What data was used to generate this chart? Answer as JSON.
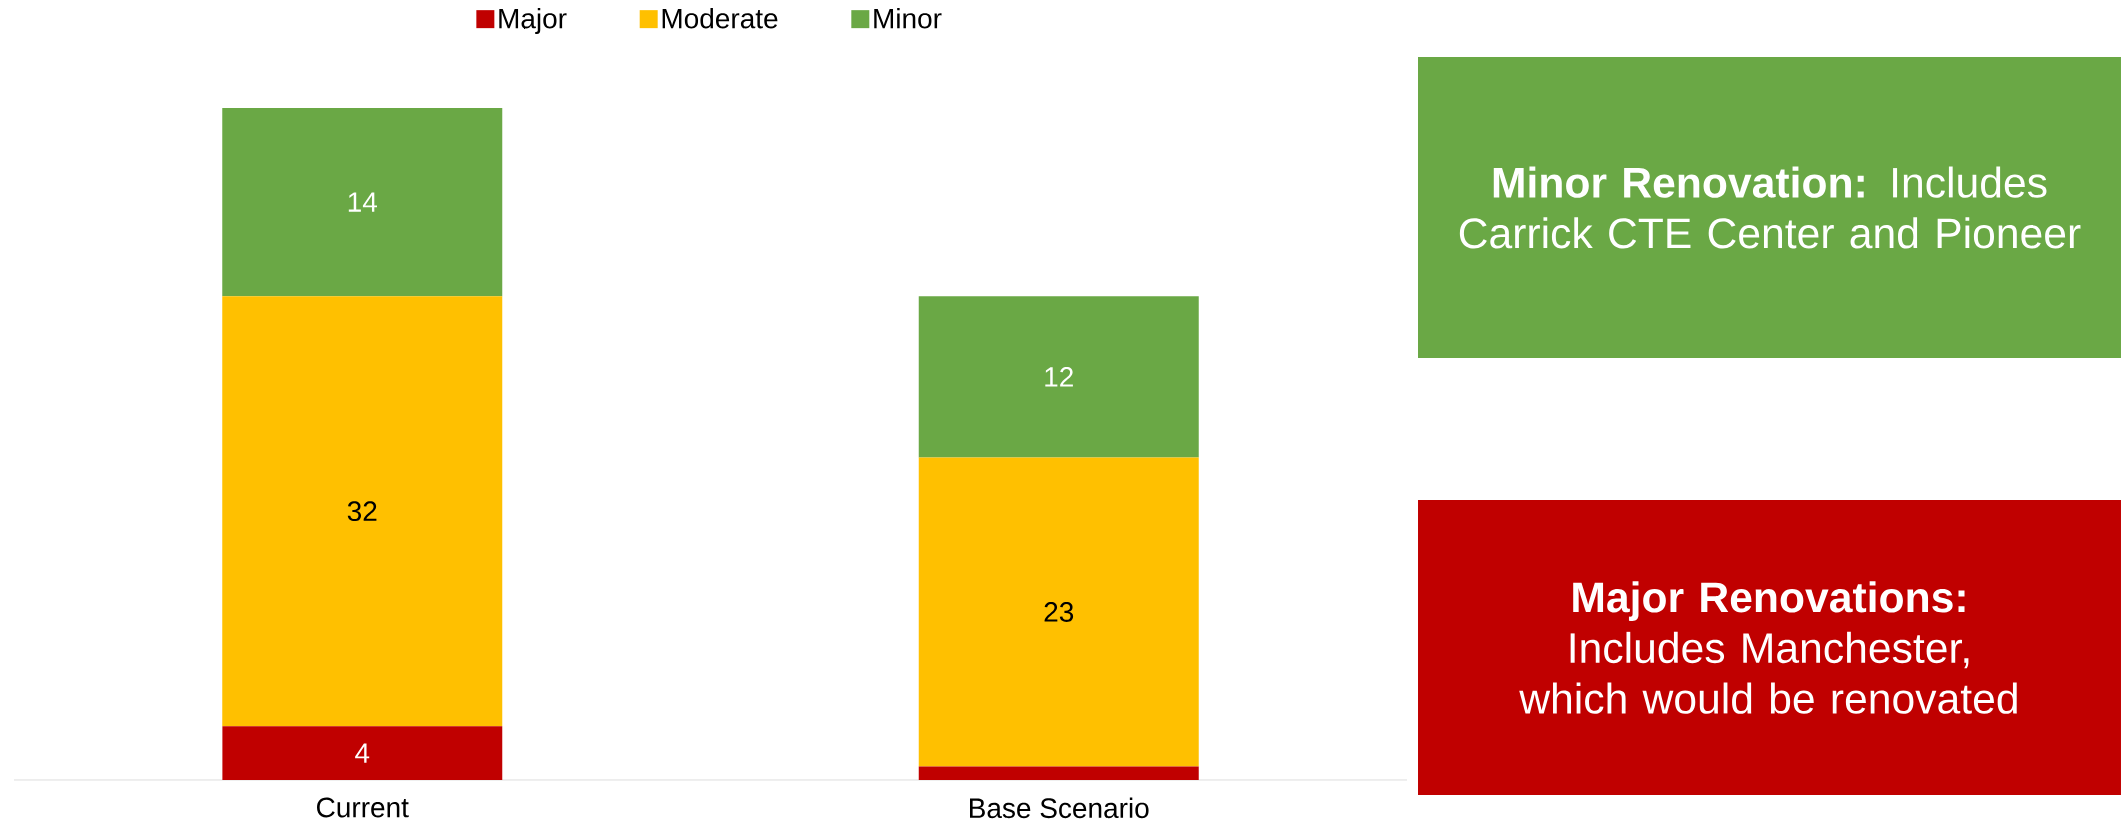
{
  "chart_data": {
    "type": "bar",
    "stacked": true,
    "categories": [
      "Current",
      "Base Scenario"
    ],
    "series": [
      {
        "name": "Major",
        "color": "#c00000",
        "values": [
          4,
          1
        ],
        "value_labels": [
          "4",
          null
        ]
      },
      {
        "name": "Moderate",
        "color": "#ffc000",
        "values": [
          32,
          23
        ],
        "value_labels": [
          "32",
          "23"
        ]
      },
      {
        "name": "Minor",
        "color": "#6aa845",
        "values": [
          14,
          12
        ],
        "value_labels": [
          "14",
          "12"
        ]
      }
    ],
    "legend": "top",
    "annotations": [
      "**Minor Renovation:** Includes Carrick CTE Center and Pioneer",
      "**Major Renovations:** Includes Manchester, which would be renovated"
    ]
  }
}
